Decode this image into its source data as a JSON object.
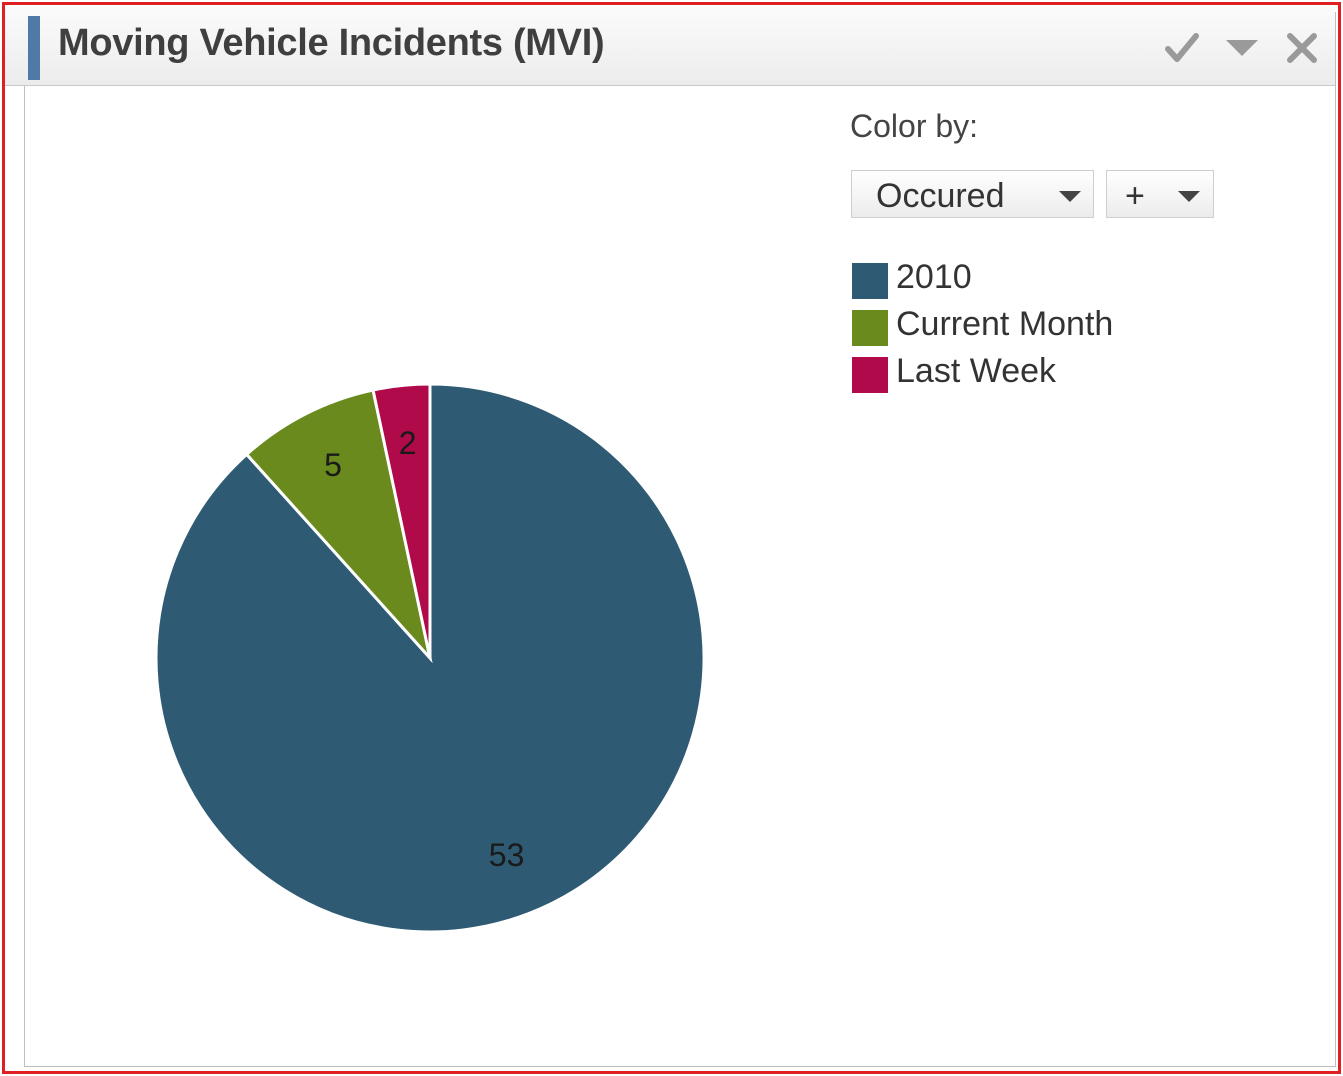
{
  "panel": {
    "title": "Moving Vehicle Incidents (MVI)",
    "accent_color": "#4f7aa8",
    "tools": [
      {
        "name": "checkmark-icon"
      },
      {
        "name": "chevron-down-icon"
      },
      {
        "name": "close-icon"
      }
    ]
  },
  "color_by": {
    "label": "Color by:",
    "field_dropdown": {
      "value": "Occured"
    },
    "add_dropdown": {
      "value": "+"
    }
  },
  "chart_data": {
    "type": "pie",
    "categories": [
      "2010",
      "Current Month",
      "Last Week"
    ],
    "values": [
      53,
      5,
      2
    ],
    "colors": [
      "#2e5b73",
      "#6b8a1e",
      "#b00a4a"
    ],
    "labels": [
      "53",
      "5",
      "2"
    ],
    "legend_position": "right",
    "start_angle": "12 o'clock, clockwise"
  }
}
